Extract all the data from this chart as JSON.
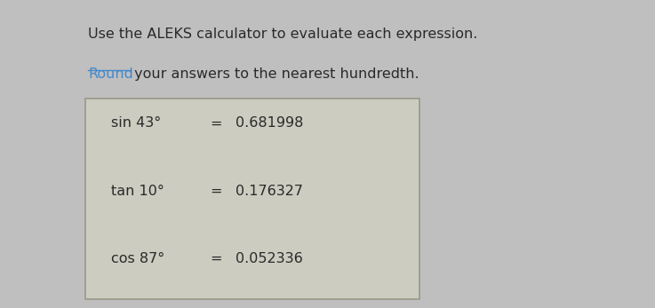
{
  "title_line1": "Use the ALEKS calculator to evaluate each expression.",
  "title_line2_prefix": " your answers to the nearest hundredth.",
  "title_line2_link": "Round",
  "bg_color": "#c0bfbf",
  "box_bg_color": "#ccccc0",
  "box_border_color": "#999988",
  "text_color": "#2a2a2a",
  "link_color": "#4488cc",
  "title_fontsize": 11.5,
  "expr_fontsize": 11.5,
  "rows": [
    {
      "label": "sin 43°",
      "equals": "=",
      "value": "0.681998"
    },
    {
      "label": "tan 10°",
      "equals": "=",
      "value": "0.176327"
    },
    {
      "label": "cos 87°",
      "equals": "=",
      "value": "0.052336"
    }
  ],
  "fig_width": 7.37,
  "fig_height": 3.47,
  "dpi": 100
}
